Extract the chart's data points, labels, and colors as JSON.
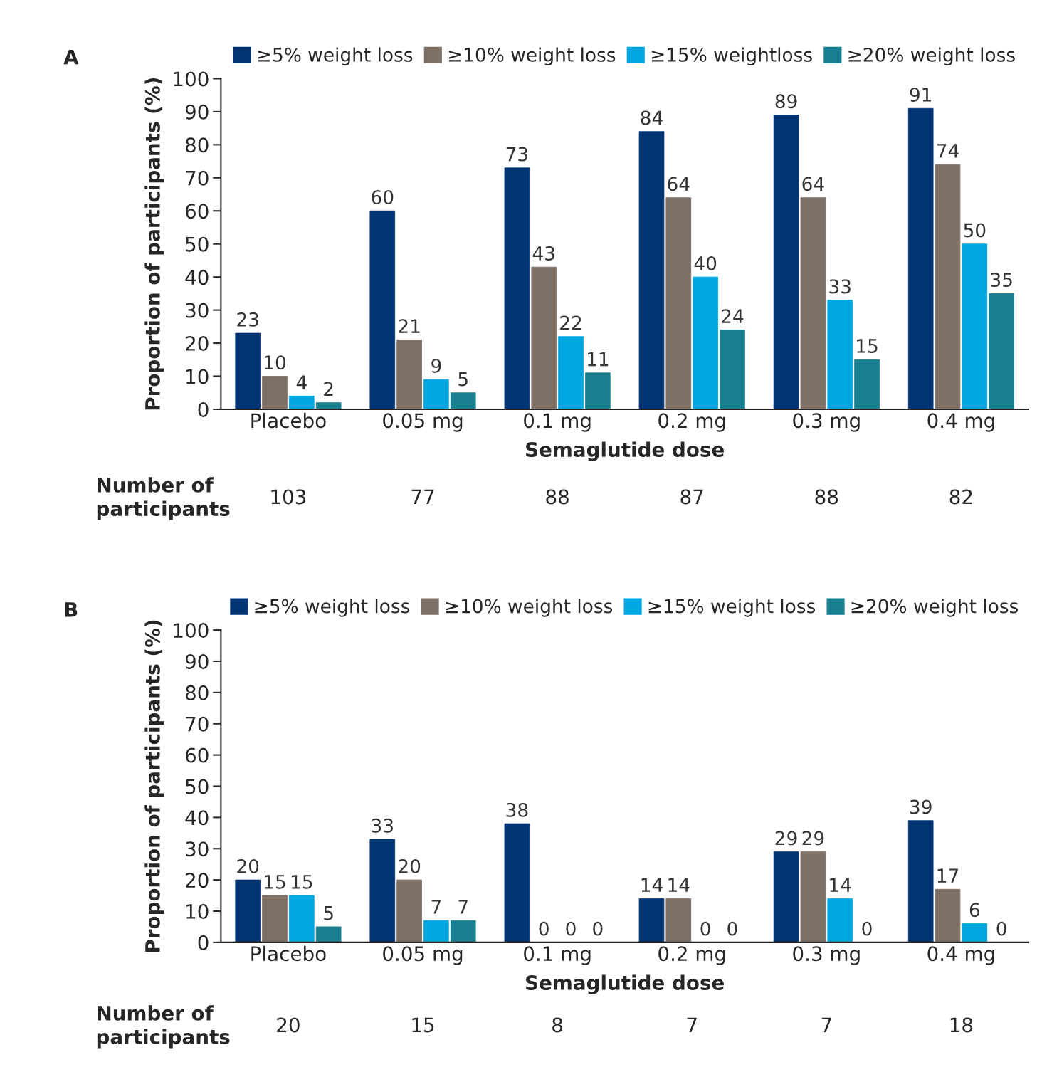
{
  "chart_data": [
    {
      "type": "bar",
      "title": "A",
      "xlabel": "Semaglutide dose",
      "ylabel": "Proportion of participants (%)",
      "categories": [
        "Placebo",
        "0.05 mg",
        "0.1 mg",
        "0.2 mg",
        "0.3 mg",
        "0.4 mg"
      ],
      "series": [
        {
          "name": "≥5% weight loss",
          "color": "#003473",
          "values": [
            23,
            60,
            73,
            84,
            89,
            91
          ]
        },
        {
          "name": "≥10% weight loss",
          "color": "#7f7066",
          "values": [
            10,
            21,
            43,
            64,
            64,
            74
          ]
        },
        {
          "name": "≥15% weightloss",
          "color": "#00a6e0",
          "values": [
            4,
            9,
            22,
            40,
            33,
            50
          ]
        },
        {
          "name": "≥20% weight loss",
          "color": "#177f8f",
          "values": [
            2,
            5,
            11,
            24,
            15,
            35
          ]
        }
      ],
      "ylim": [
        0,
        100
      ],
      "yticks": [
        0,
        10,
        20,
        30,
        40,
        50,
        60,
        70,
        80,
        90,
        100
      ],
      "data_labels": true,
      "legend": "top",
      "grid": false,
      "annotations": [
        "Number of\nparticipants",
        "103",
        "77",
        "88",
        "87",
        "88",
        "82"
      ]
    },
    {
      "type": "bar",
      "title": "B",
      "xlabel": "Semaglutide dose",
      "ylabel": "Proportion of participants (%)",
      "categories": [
        "Placebo",
        "0.05 mg",
        "0.1 mg",
        "0.2 mg",
        "0.3 mg",
        "0.4 mg"
      ],
      "series": [
        {
          "name": "≥5% weight loss",
          "color": "#003473",
          "values": [
            20,
            33,
            38,
            14,
            29,
            39
          ]
        },
        {
          "name": "≥10% weight loss",
          "color": "#7f7066",
          "values": [
            15,
            20,
            0,
            14,
            29,
            17
          ]
        },
        {
          "name": "≥15% weight loss",
          "color": "#00a6e0",
          "values": [
            15,
            7,
            0,
            0,
            14,
            6
          ]
        },
        {
          "name": "≥20% weight loss",
          "color": "#177f8f",
          "values": [
            5,
            7,
            0,
            0,
            0,
            0
          ]
        }
      ],
      "ylim": [
        0,
        100
      ],
      "yticks": [
        0,
        10,
        20,
        30,
        40,
        50,
        60,
        70,
        80,
        90,
        100
      ],
      "data_labels": true,
      "legend": "top",
      "grid": false,
      "annotations": [
        "Number of\nparticipants",
        "20",
        "15",
        "8",
        "7",
        "7",
        "18"
      ]
    }
  ]
}
